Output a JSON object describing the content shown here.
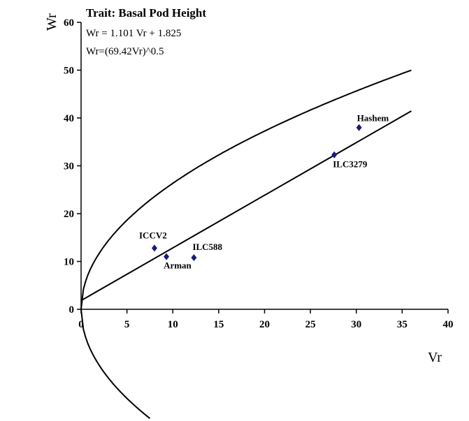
{
  "chart_data": {
    "type": "scatter",
    "title": "Trait: Basal Pod Height",
    "annotations": [
      "Wr = 1.101 Vr + 1.825",
      "Wr=(69.42Vr)^0.5"
    ],
    "xlabel": "Vr",
    "ylabel": "Wr",
    "xlim": [
      0,
      40
    ],
    "ylim": [
      0,
      60
    ],
    "x_ticks": [
      "0",
      "5",
      "10",
      "15",
      "20",
      "25",
      "30",
      "35",
      "40"
    ],
    "y_ticks": [
      "0",
      "10",
      "20",
      "30",
      "40",
      "50",
      "60"
    ],
    "grid": false,
    "points": [
      {
        "label": "ICCV2",
        "x": 8.0,
        "y": 12.8
      },
      {
        "label": "Arman",
        "x": 9.3,
        "y": 11.0
      },
      {
        "label": "ILC588",
        "x": 12.3,
        "y": 10.8
      },
      {
        "label": "ILC3279",
        "x": 27.6,
        "y": 32.3
      },
      {
        "label": "Hashem",
        "x": 30.3,
        "y": 38.0
      }
    ],
    "regression_line": {
      "slope": 1.101,
      "intercept": 1.825,
      "x_range": [
        0,
        36
      ]
    },
    "parabola": {
      "k": 69.42,
      "x_max": 36
    }
  }
}
